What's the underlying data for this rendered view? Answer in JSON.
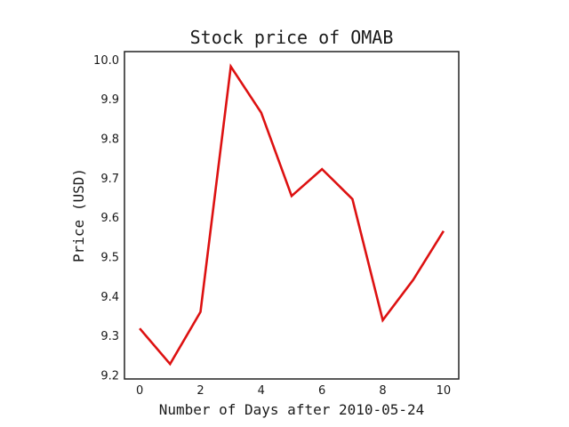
{
  "chart_data": {
    "type": "line",
    "title": "Stock price of OMAB",
    "xlabel": "Number of Days after 2010-05-24",
    "ylabel": "Price (USD)",
    "x": [
      0,
      1,
      2,
      3,
      4,
      5,
      6,
      7,
      8,
      9,
      10
    ],
    "series": [
      {
        "values": [
          9.318,
          9.228,
          9.36,
          9.982,
          9.865,
          9.654,
          9.722,
          9.646,
          9.339,
          9.441,
          9.565
        ],
        "color": "#dd1111"
      }
    ],
    "xlim": [
      -0.5,
      10.5
    ],
    "ylim": [
      9.19,
      10.02
    ],
    "xticks": [
      "0",
      "2",
      "4",
      "6",
      "8",
      "10"
    ],
    "yticks": [
      "9.2",
      "9.3",
      "9.4",
      "9.5",
      "9.6",
      "9.7",
      "9.8",
      "9.9",
      "10.0"
    ],
    "grid": false
  }
}
